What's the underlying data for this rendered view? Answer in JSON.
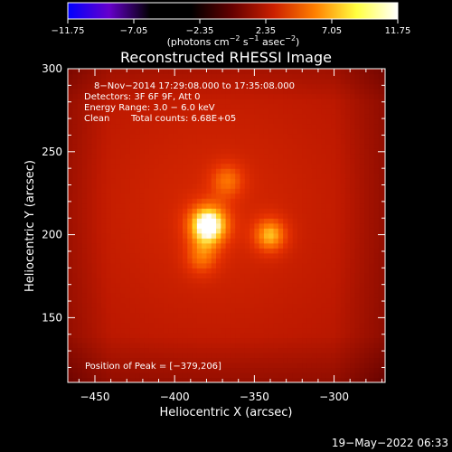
{
  "chart_data": {
    "type": "heatmap",
    "title": "Reconstructed RHESSI Image",
    "xlabel": "Heliocentric X (arcsec)",
    "ylabel": "Heliocentric Y (arcsec)",
    "xlim": [
      -467,
      -268
    ],
    "ylim": [
      111,
      300
    ],
    "xticks": [
      -450,
      -400,
      -350,
      -300
    ],
    "xtick_labels": [
      "−450",
      "−400",
      "−350",
      "−300"
    ],
    "yticks": [
      150,
      200,
      250,
      300
    ],
    "ytick_labels": [
      "150",
      "200",
      "250",
      "300"
    ],
    "colorbar": {
      "range": [
        -11.75,
        11.75
      ],
      "ticks": [
        -11.75,
        -7.05,
        -2.35,
        2.35,
        7.05,
        11.75
      ],
      "tick_labels": [
        "−11.75",
        "−7.05",
        "−2.35",
        "2.35",
        "7.05",
        "11.75"
      ],
      "units_parts": [
        "(photons cm",
        "−2",
        " s",
        "−1",
        " asec",
        "−2",
        ")"
      ],
      "colormap_stops": [
        "#0000ff",
        "#6600cc",
        "#000000",
        "#000000",
        "#660000",
        "#cc2000",
        "#ff8000",
        "#ffff40",
        "#ffffff"
      ]
    },
    "sources": [
      {
        "x": -379,
        "y": 206,
        "intensity": 11.75
      },
      {
        "x": -340,
        "y": 200,
        "intensity": 7.6
      },
      {
        "x": -367,
        "y": 233,
        "intensity": 5.0
      },
      {
        "x": -383,
        "y": 186,
        "intensity": 4.6
      }
    ],
    "annotations": {
      "line1": "8−Nov−2014 17:29:08.000 to 17:35:08.000",
      "line2": "Detectors: 3F 6F 9F, Att 0",
      "line3": "Energy Range: 3.0 − 6.0 keV",
      "line4_method": "Clean",
      "line4_counts": "Total counts: 6.68E+05",
      "peak": "Position of Peak = [−379,206]"
    },
    "timestamp": "19−May−2022 06:33",
    "colors": {
      "background": "#000000",
      "text": "#ffffff"
    }
  }
}
